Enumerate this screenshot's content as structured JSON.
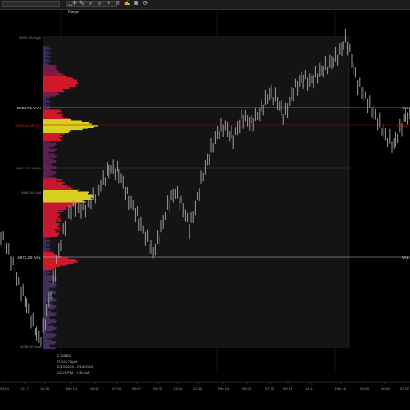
{
  "toolbar": {
    "instrument_select": "",
    "range_select": "20 Range",
    "icons": [
      "crosshair-icon",
      "pencil-icon",
      "zoom-in-icon",
      "zoom-out-icon",
      "plus-icon",
      "magnet-icon",
      "pen-edit-icon",
      "grid-icon",
      "sync-icon"
    ]
  },
  "levels": {
    "high": "5009.25 High",
    "vah": "5003.75 VAH",
    "mpoc": "5000.00 MPOC",
    "vwap": "4987.25 VWAP",
    "mid": "4980.00 Mid",
    "val": "4972.25 VAL",
    "low": "4958.00 Low",
    "vah_right": "VAH",
    "val_right": "VAL",
    "mpoc_right": "MPOC"
  },
  "info_box": {
    "line1": "Σ 33846",
    "line2": "R 122.75pts",
    "line3": "2/13/2024 - 2/16/2024",
    "line4": "12:21 PM - 5:30 AM"
  },
  "x_axis": {
    "ticks": [
      "09:10",
      "11:17",
      "12:28",
      "Feb 14",
      "05:51",
      "07:03",
      "08:07",
      "09:23",
      "11:04",
      "12:16",
      "Feb 15",
      "06:28",
      "07:23",
      "09:18",
      "11:11",
      "Feb 16",
      "05:49",
      "06:54",
      "07:32"
    ]
  },
  "colors": {
    "background": "#000000",
    "vah_line": "#c8c8c8",
    "mpoc_line": "#b40000",
    "profile_red": "#d01828",
    "profile_yellow": "#d8d020",
    "bars": "#9a9a9a"
  }
}
